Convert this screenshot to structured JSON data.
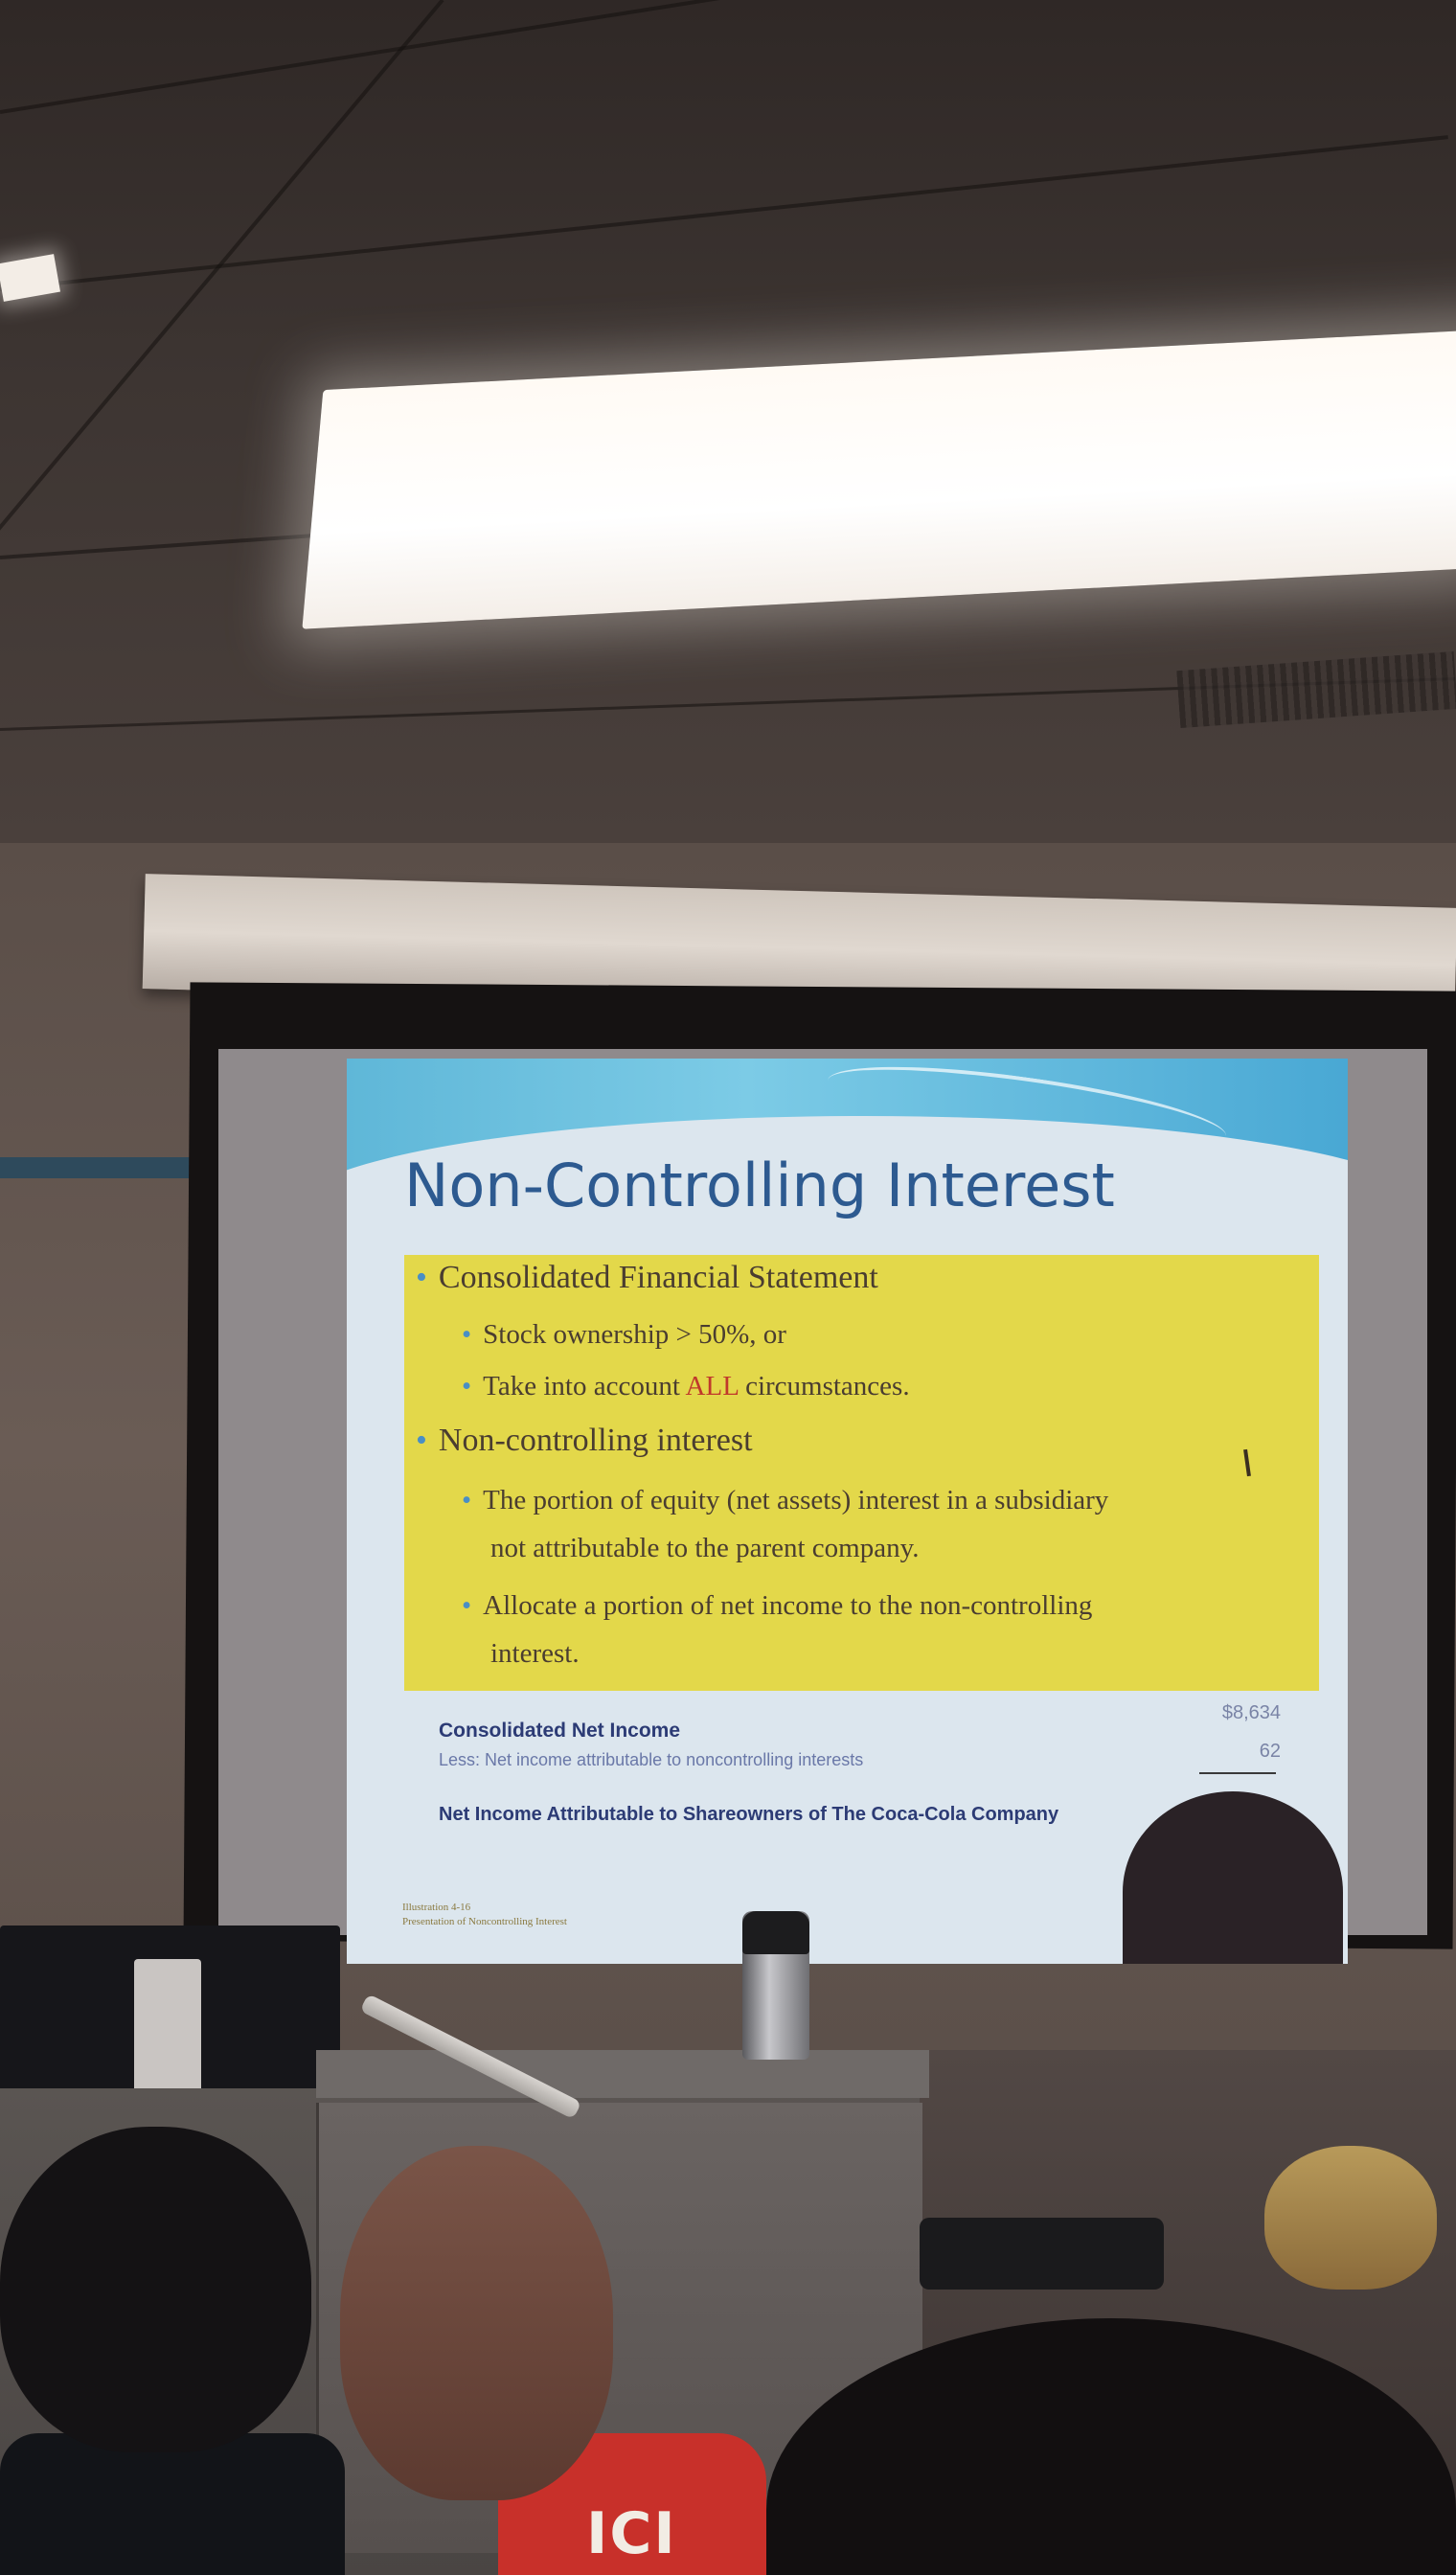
{
  "slide": {
    "title": "Non-Controlling Interest",
    "bullets": [
      {
        "text": "Consolidated Financial Statement",
        "level": 1
      },
      {
        "text": "Stock ownership > 50%, or",
        "level": 2
      },
      {
        "text_before": "Take into account ",
        "text_accent": "ALL",
        "text_after": " circumstances.",
        "level": 2
      },
      {
        "text": "Non-controlling interest",
        "level": 1
      },
      {
        "text": "The portion of equity (net assets) interest in a subsidiary",
        "level": 2
      },
      {
        "text": "not attributable to the parent company.",
        "level": 2,
        "continuation": true
      },
      {
        "text": "Allocate a portion of net income to the non-controlling",
        "level": 2
      },
      {
        "text": "interest.",
        "level": 2,
        "continuation": true
      }
    ],
    "income_table": {
      "rows": [
        {
          "label": "Consolidated Net Income",
          "value": "$8,634"
        },
        {
          "label": "Less: Net income attributable to noncontrolling interests",
          "value": "62"
        },
        {
          "label": "Net Income Attributable to Shareowners of The Coca-Cola Company",
          "value": ""
        }
      ]
    },
    "caption": {
      "line1": "Illustration 4-16",
      "line2": "Presentation of Noncontrolling Interest"
    },
    "colors": {
      "title": "#2d5a90",
      "highlight_box": "#e3d84a",
      "accent": "#c0392b",
      "bullet": "#4a8fc4"
    }
  },
  "audience": {
    "shirt_text": "ICI"
  }
}
